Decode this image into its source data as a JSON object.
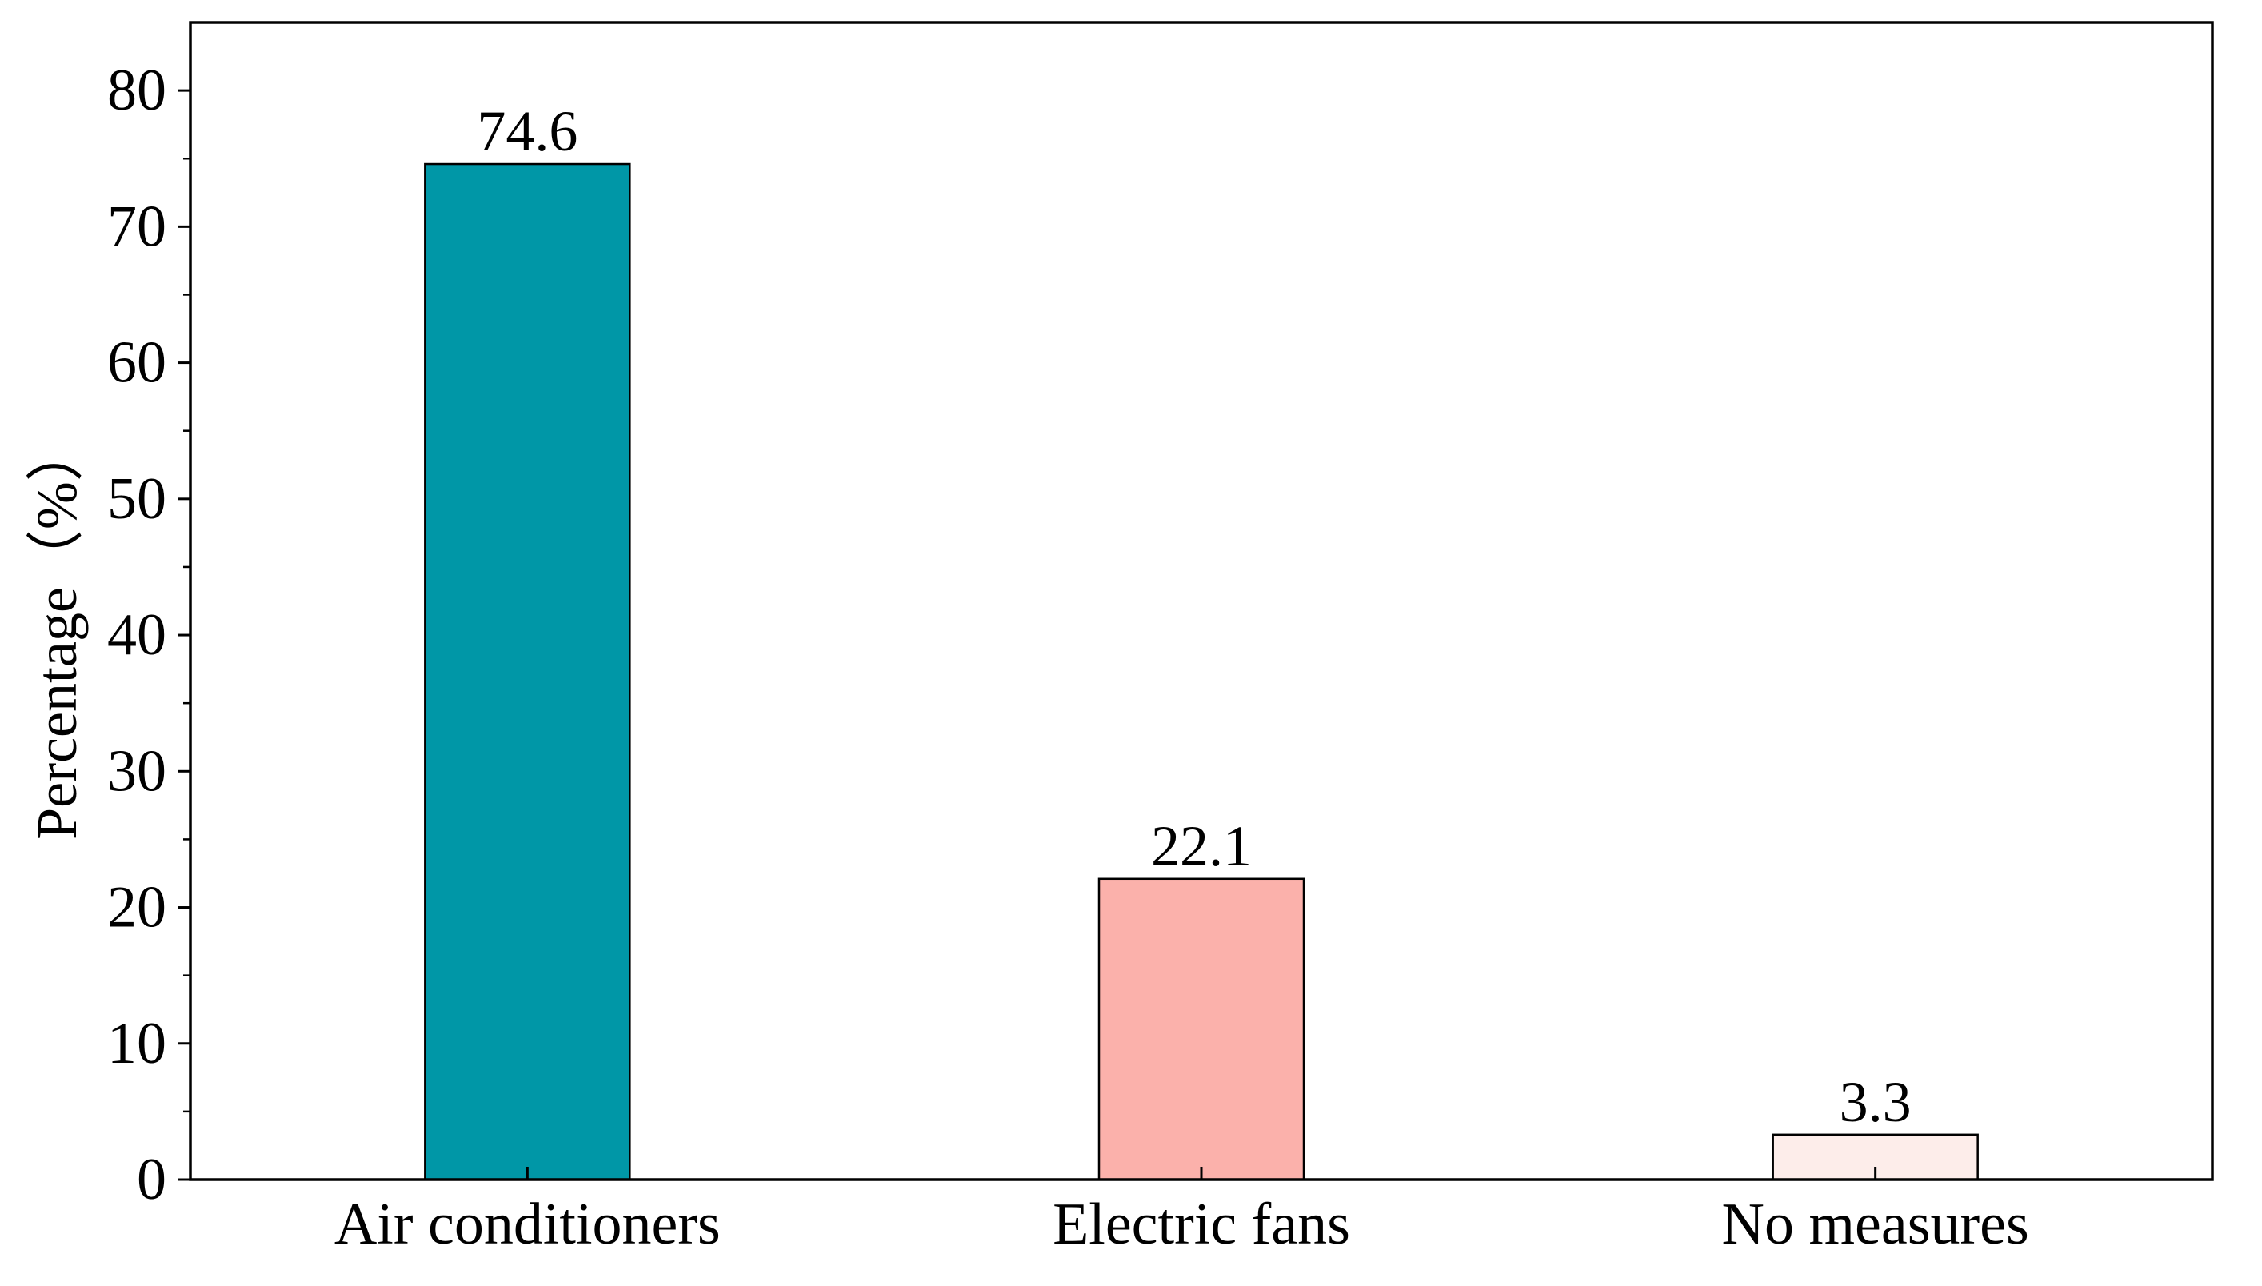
{
  "chart_data": {
    "type": "bar",
    "title": "",
    "xlabel": "",
    "ylabel": "Percentage（%）",
    "categories": [
      "Air conditioners",
      "Electric fans",
      "No measures"
    ],
    "values": [
      74.6,
      22.1,
      3.3
    ],
    "value_labels": [
      "74.6",
      "22.1",
      "3.3"
    ],
    "bar_colors": [
      "#0097A7",
      "#FBB1AB",
      "#FDEDEA"
    ],
    "bar_edge_color": "#000000",
    "ylim": [
      0,
      85
    ],
    "yticks": [
      0,
      10,
      20,
      30,
      40,
      50,
      60,
      70,
      80
    ],
    "ytick_labels": [
      "0",
      "10",
      "20",
      "30",
      "40",
      "50",
      "60",
      "70",
      "80"
    ],
    "minor_ytick_step": 5,
    "grid": false,
    "legend": "none"
  }
}
